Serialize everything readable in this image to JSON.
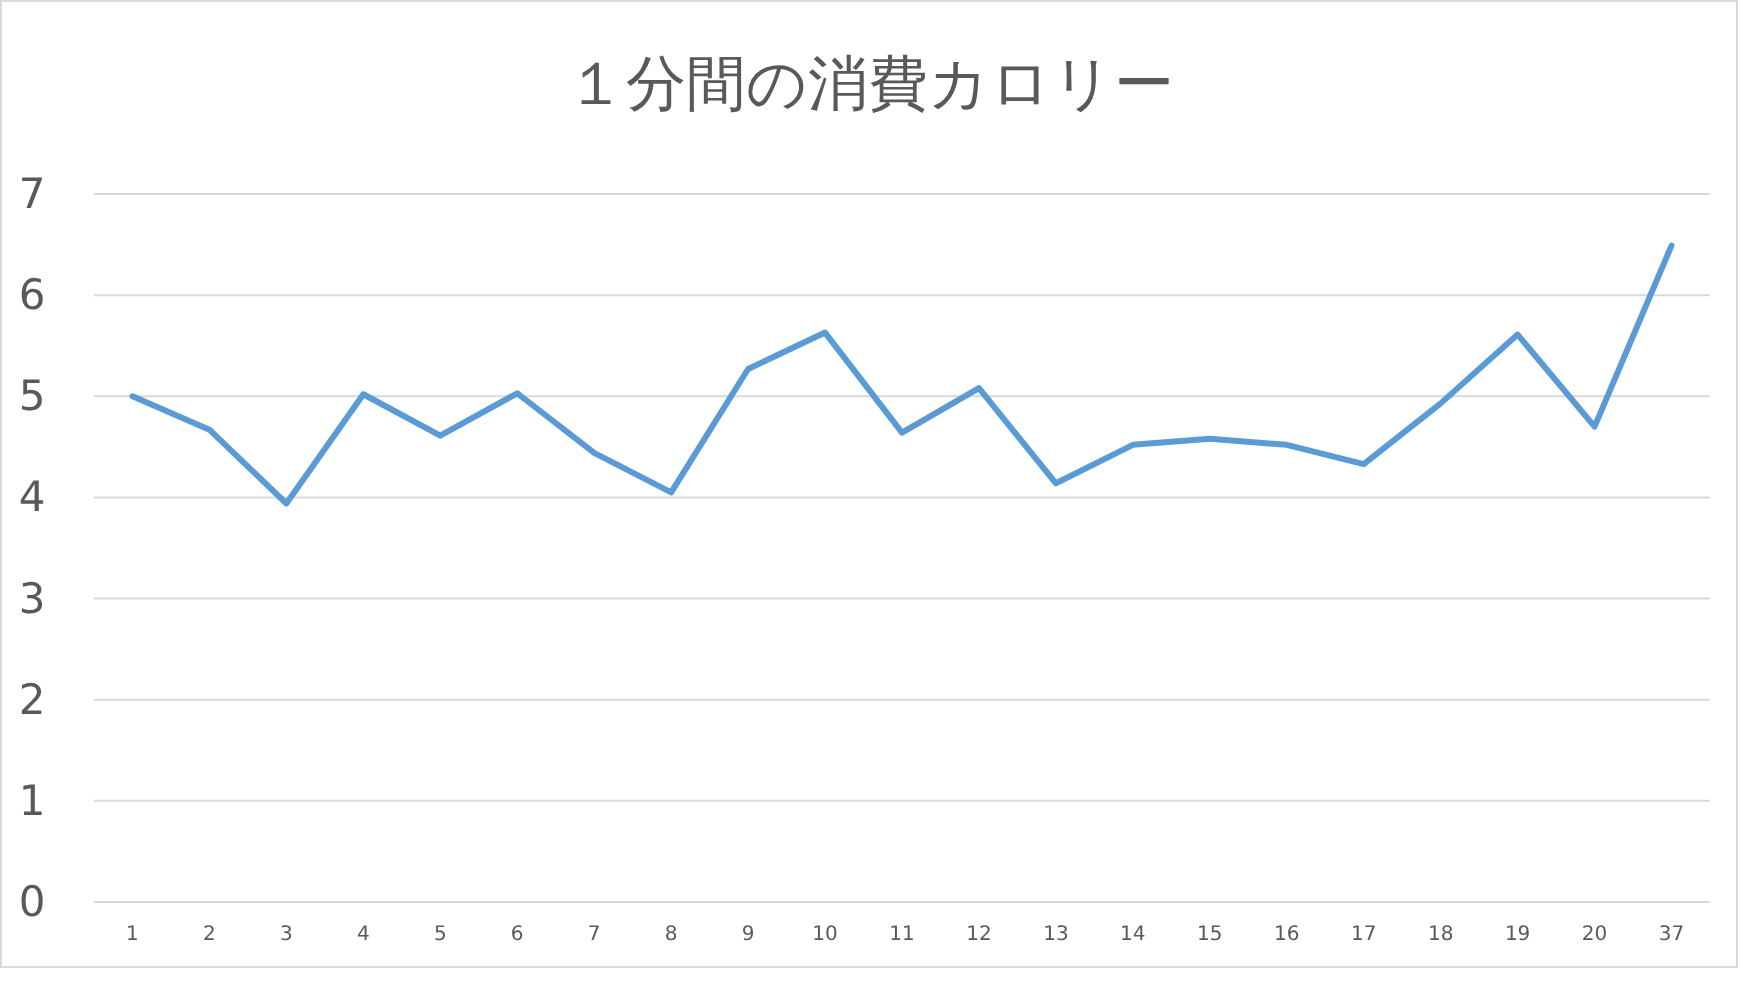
{
  "chart_data": {
    "type": "line",
    "title": "１分間の消費カロリー",
    "categories": [
      "1",
      "2",
      "3",
      "4",
      "5",
      "6",
      "7",
      "8",
      "9",
      "10",
      "11",
      "12",
      "13",
      "14",
      "15",
      "16",
      "17",
      "18",
      "19",
      "20",
      "37"
    ],
    "series": [
      {
        "color": "#5b9bd5",
        "values": [
          5.0,
          4.67,
          3.94,
          5.02,
          4.61,
          5.03,
          4.44,
          4.05,
          5.27,
          5.63,
          4.64,
          5.08,
          4.14,
          4.52,
          4.58,
          4.52,
          4.33,
          4.93,
          5.61,
          4.7,
          6.49
        ]
      }
    ],
    "ylim": [
      0,
      7
    ],
    "yticks": [
      0,
      1,
      2,
      3,
      4,
      5,
      6,
      7
    ],
    "grid": "y",
    "marker": "none",
    "line_style": "solid"
  }
}
